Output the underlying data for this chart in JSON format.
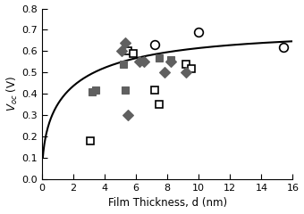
{
  "title": "",
  "xlabel": "Film Thickness, d (nm)",
  "ylabel": "$V_{oc}$ (V)",
  "xlim": [
    0,
    16
  ],
  "ylim": [
    0,
    0.8
  ],
  "xticks": [
    0,
    2,
    4,
    6,
    8,
    10,
    12,
    14,
    16
  ],
  "yticks": [
    0,
    0.1,
    0.2,
    0.3,
    0.4,
    0.5,
    0.6,
    0.7,
    0.8
  ],
  "open_circles": [
    [
      7.2,
      0.63
    ],
    [
      10.0,
      0.69
    ],
    [
      15.4,
      0.62
    ]
  ],
  "open_squares": [
    [
      3.1,
      0.18
    ],
    [
      5.5,
      0.6
    ],
    [
      5.8,
      0.59
    ],
    [
      7.2,
      0.42
    ],
    [
      7.5,
      0.35
    ],
    [
      9.2,
      0.54
    ],
    [
      9.5,
      0.52
    ]
  ],
  "filled_squares": [
    [
      3.2,
      0.41
    ],
    [
      3.4,
      0.42
    ],
    [
      5.2,
      0.54
    ],
    [
      5.3,
      0.42
    ],
    [
      7.5,
      0.57
    ],
    [
      8.2,
      0.56
    ]
  ],
  "filled_diamonds": [
    [
      5.1,
      0.6
    ],
    [
      5.3,
      0.64
    ],
    [
      5.5,
      0.3
    ],
    [
      6.2,
      0.55
    ],
    [
      6.5,
      0.55
    ],
    [
      7.8,
      0.5
    ],
    [
      8.2,
      0.55
    ],
    [
      9.2,
      0.5
    ]
  ],
  "curve_A": 0.685,
  "curve_k": 0.72,
  "background_color": "#ffffff",
  "line_color": "#000000",
  "marker_color_filled": "#606060",
  "marker_size_circle": 7,
  "marker_size_square": 6,
  "marker_size_diamond": 6
}
